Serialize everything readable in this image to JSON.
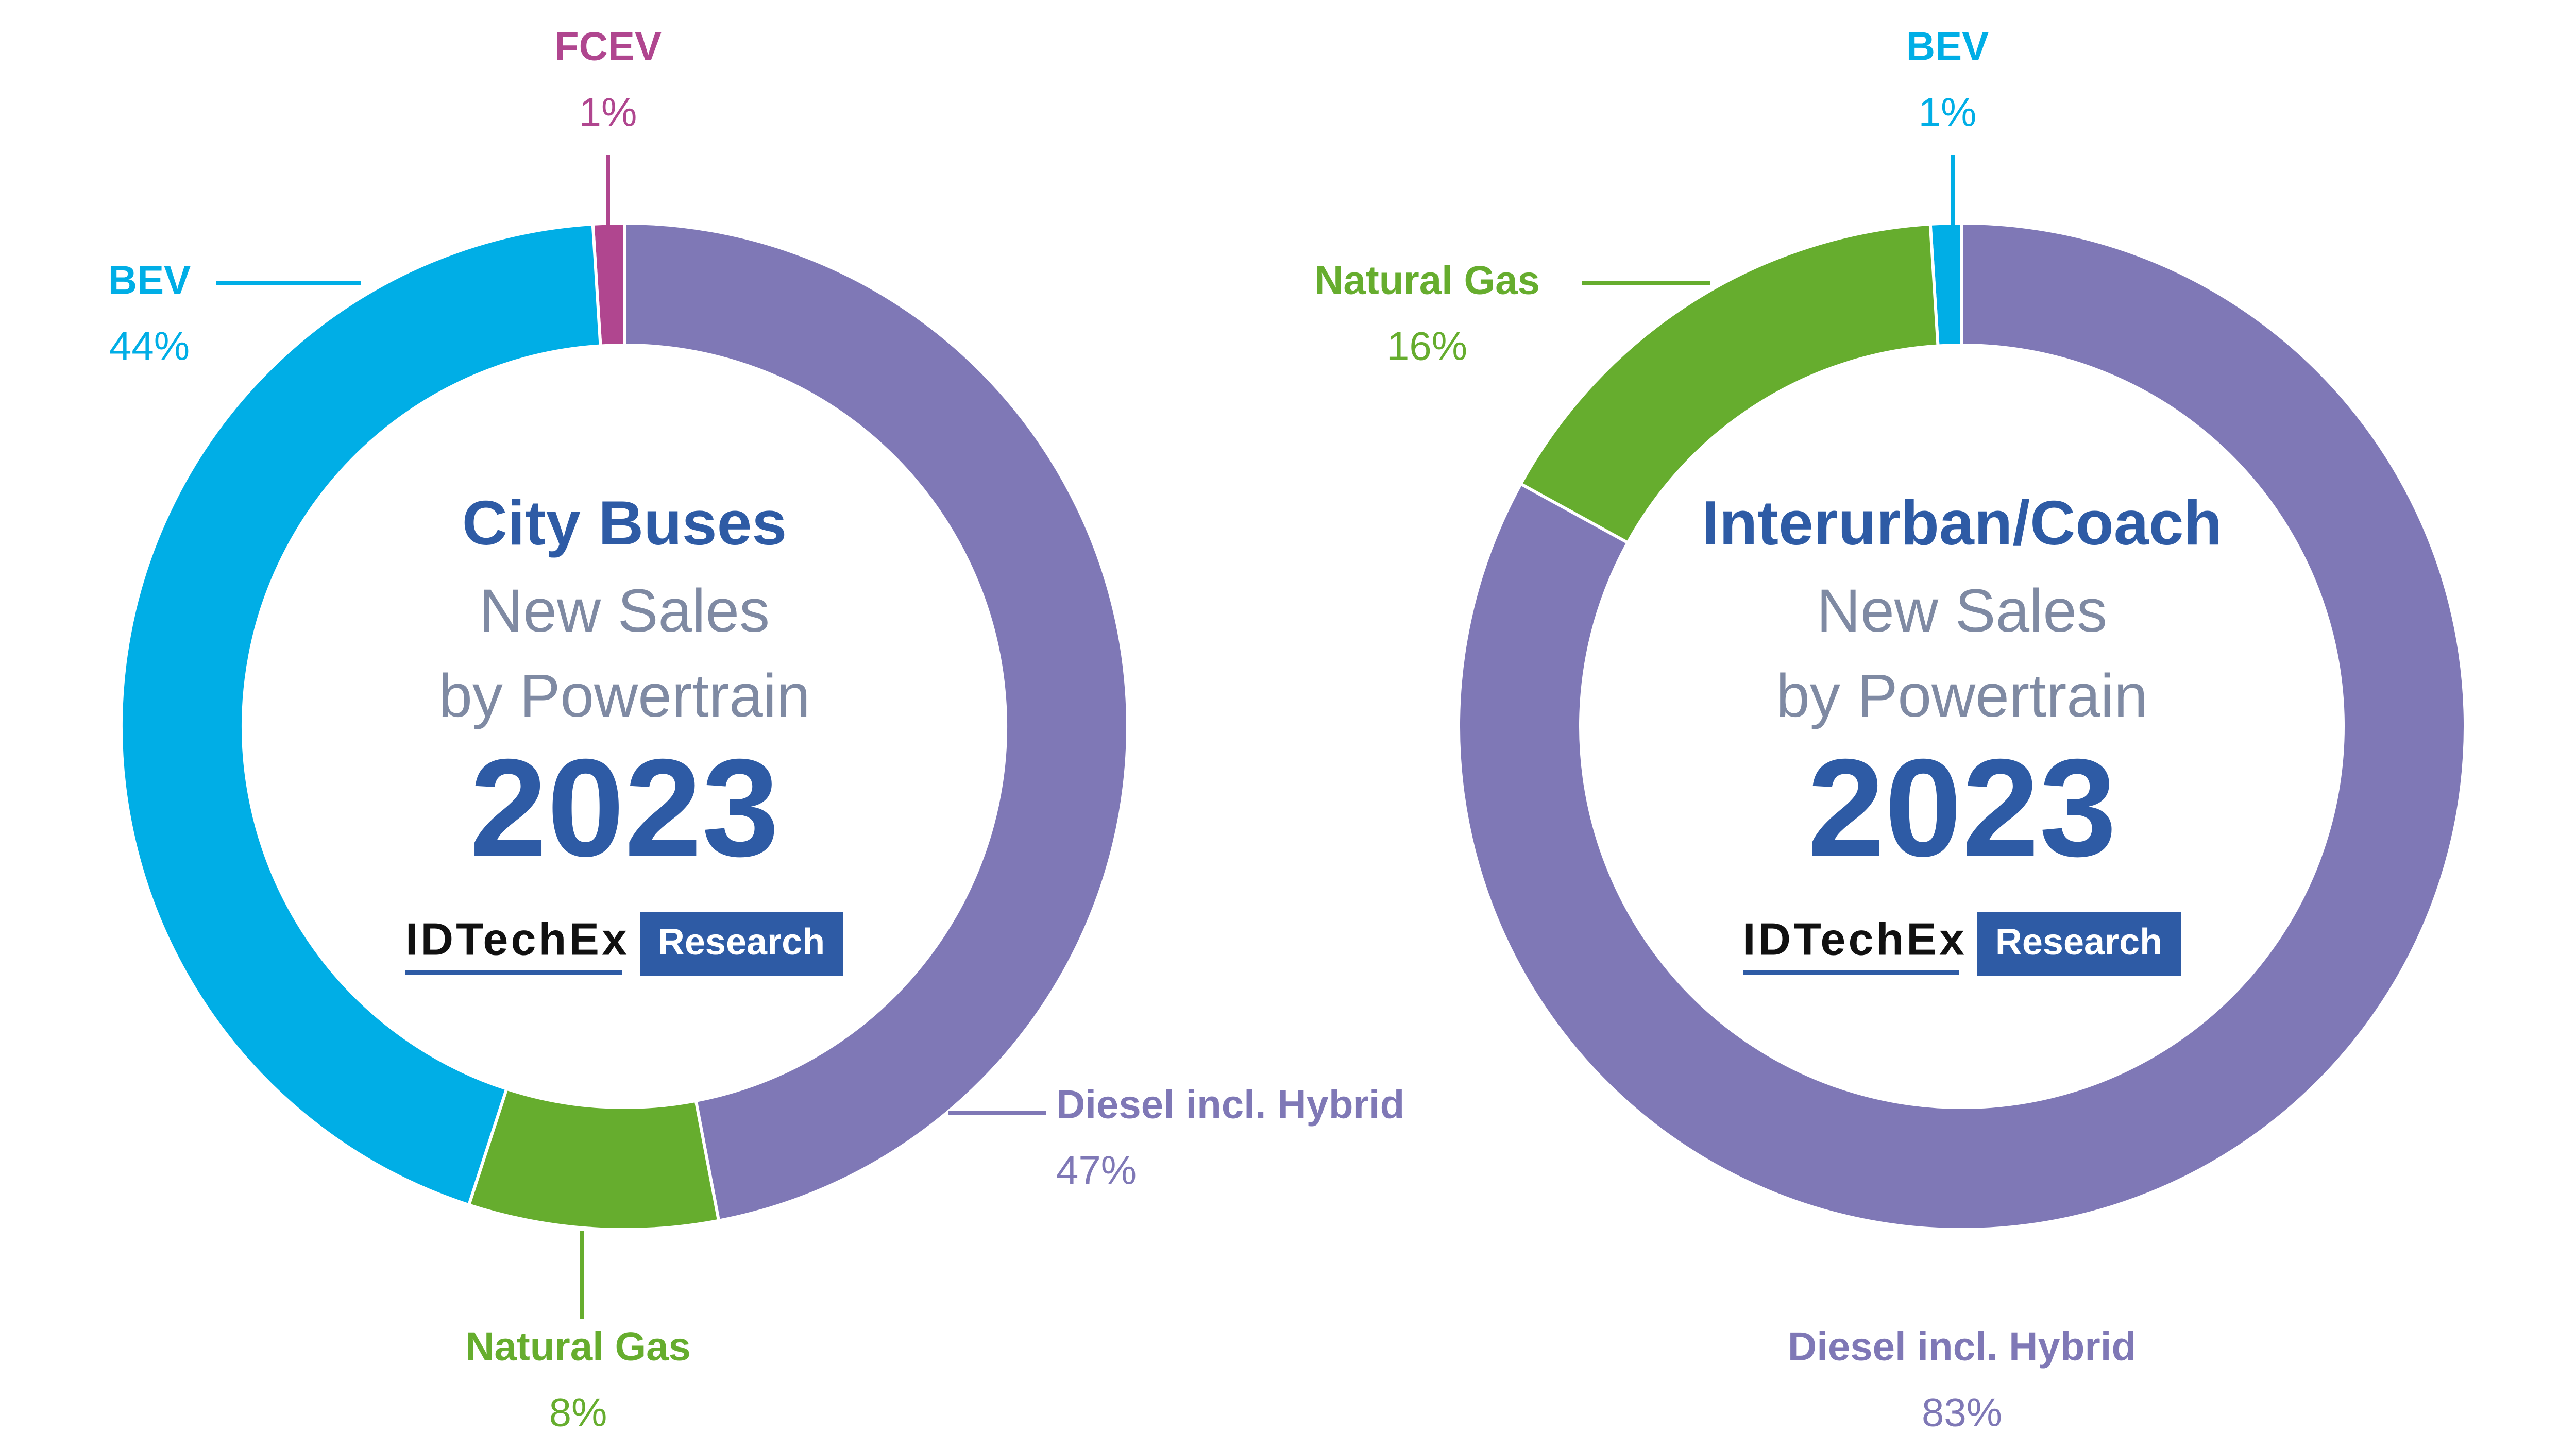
{
  "chart_data": [
    {
      "type": "donut",
      "title": "City Buses",
      "subtitle": [
        "New Sales",
        "by Powertrain"
      ],
      "year": "2023",
      "categories": [
        "FCEV",
        "Diesel incl. Hybrid",
        "Natural Gas",
        "BEV"
      ],
      "values": [
        1,
        47,
        8,
        44
      ],
      "value_labels": [
        "1%",
        "47%",
        "8%",
        "44%"
      ],
      "colors": [
        "#b0468f",
        "#7f78b6",
        "#66ad2e",
        "#00aee6"
      ]
    },
    {
      "type": "donut",
      "title": "Interurban/Coach",
      "subtitle": [
        "New Sales",
        "by Powertrain"
      ],
      "year": "2023",
      "categories": [
        "BEV",
        "Diesel incl. Hybrid",
        "Natural Gas"
      ],
      "values": [
        1,
        83,
        16
      ],
      "value_labels": [
        "1%",
        "83%",
        "16%"
      ],
      "colors": [
        "#00aee6",
        "#7f78b6",
        "#66ad2e"
      ]
    }
  ],
  "logo": {
    "brand": "IDTechEx",
    "tag": "Research"
  }
}
